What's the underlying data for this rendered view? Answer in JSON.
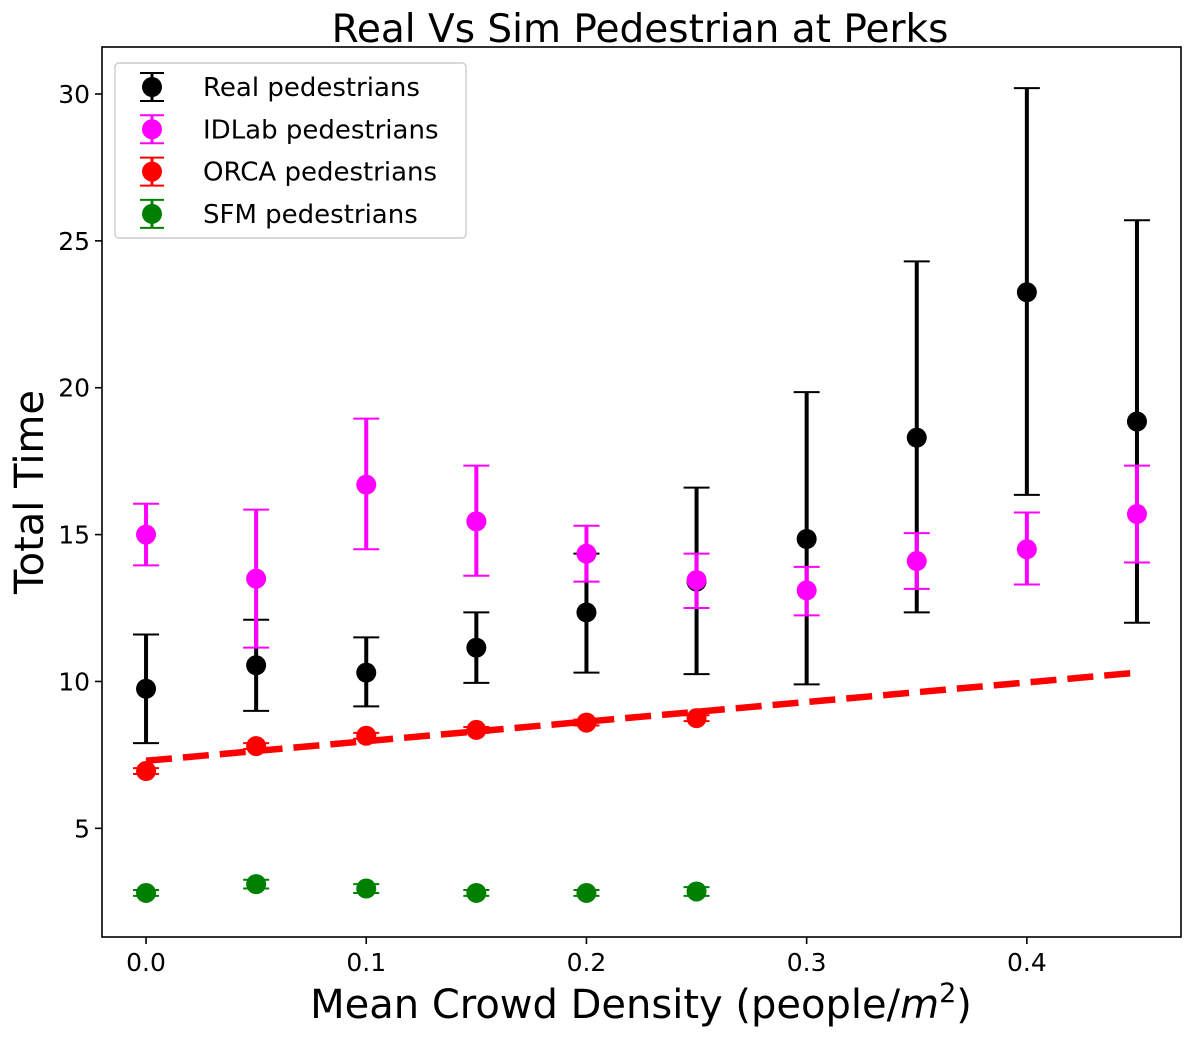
{
  "chart_data": {
    "type": "scatter",
    "title": "Real Vs Sim Pedestrian at Perks",
    "xlabel": "Mean Crowd Density (people/",
    "xlabel_unit": "m",
    "xlabel_power": "2",
    "xlabel_close": ")",
    "ylabel": "Total Time",
    "xlim": [
      -0.02,
      0.47
    ],
    "ylim": [
      1.3,
      31.6
    ],
    "xticks": [
      0.0,
      0.1,
      0.2,
      0.3,
      0.4
    ],
    "xtick_labels": [
      "0.0",
      "0.1",
      "0.2",
      "0.3",
      "0.4"
    ],
    "yticks": [
      5,
      10,
      15,
      20,
      25,
      30
    ],
    "ytick_labels": [
      "5",
      "10",
      "15",
      "20",
      "25",
      "30"
    ],
    "grid": false,
    "legend_position": "top-left",
    "series": [
      {
        "name": "Real pedestrians",
        "color": "#000000",
        "x": [
          0.0,
          0.05,
          0.1,
          0.15,
          0.2,
          0.25,
          0.3,
          0.35,
          0.4,
          0.45
        ],
        "y": [
          9.75,
          10.55,
          10.3,
          11.15,
          12.35,
          13.4,
          14.85,
          18.3,
          23.25,
          18.85
        ],
        "err_low": [
          7.9,
          9.0,
          9.15,
          9.95,
          10.3,
          10.25,
          9.9,
          12.35,
          16.35,
          12.0
        ],
        "err_high": [
          11.6,
          12.1,
          11.5,
          12.35,
          14.35,
          16.6,
          19.85,
          24.3,
          30.2,
          25.7
        ]
      },
      {
        "name": "IDLab pedestrians",
        "color": "#ff00ff",
        "x": [
          0.0,
          0.05,
          0.1,
          0.15,
          0.2,
          0.25,
          0.3,
          0.35,
          0.4,
          0.45
        ],
        "y": [
          15.0,
          13.5,
          16.7,
          15.45,
          14.35,
          13.45,
          13.1,
          14.1,
          14.5,
          15.7
        ],
        "err_low": [
          13.95,
          11.15,
          14.5,
          13.6,
          13.4,
          12.5,
          12.25,
          13.15,
          13.3,
          14.05
        ],
        "err_high": [
          16.05,
          15.85,
          18.95,
          17.35,
          15.3,
          14.35,
          13.9,
          15.05,
          15.75,
          17.35
        ]
      },
      {
        "name": "ORCA pedestrians",
        "color": "#ff0000",
        "x": [
          0.0,
          0.05,
          0.1,
          0.15,
          0.2,
          0.25
        ],
        "y": [
          6.95,
          7.8,
          8.15,
          8.35,
          8.6,
          8.75
        ],
        "err_low": [
          6.85,
          7.7,
          8.05,
          8.25,
          8.5,
          8.65
        ],
        "err_high": [
          7.05,
          7.9,
          8.25,
          8.45,
          8.7,
          8.85
        ]
      },
      {
        "name": "SFM pedestrians",
        "color": "#008000",
        "x": [
          0.0,
          0.05,
          0.1,
          0.15,
          0.2,
          0.25
        ],
        "y": [
          2.8,
          3.1,
          2.95,
          2.8,
          2.8,
          2.85
        ],
        "err_low": [
          2.7,
          2.95,
          2.8,
          2.7,
          2.7,
          2.7
        ],
        "err_high": [
          2.9,
          3.25,
          3.1,
          2.9,
          2.9,
          3.0
        ]
      }
    ],
    "fit_line": {
      "color": "#ff0000",
      "style": "dashed",
      "x": [
        0.0,
        0.45
      ],
      "y": [
        7.3,
        10.3
      ]
    }
  }
}
